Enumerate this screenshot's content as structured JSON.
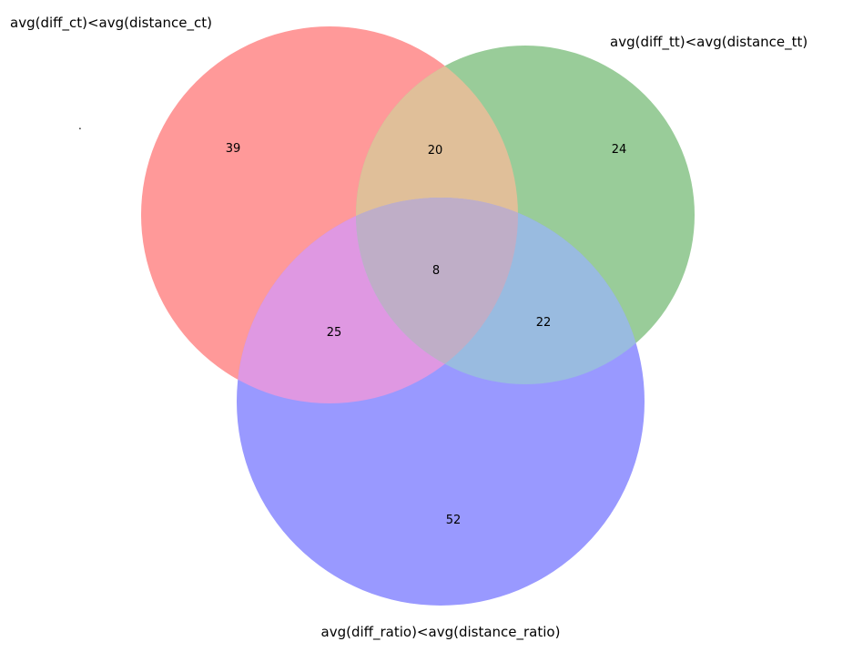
{
  "diagram": {
    "type": "venn3",
    "sets": [
      {
        "id": "A",
        "label": "avg(diff_ct)<avg(distance_ct)",
        "color": "#ff9999"
      },
      {
        "id": "B",
        "label": "avg(diff_tt)<avg(distance_tt)",
        "color": "#99cc99"
      },
      {
        "id": "C",
        "label": "avg(diff_ratio)<avg(distance_ratio)",
        "color": "#9999ff"
      }
    ],
    "regions": {
      "A_only": "39",
      "B_only": "24",
      "C_only": "52",
      "A_B": "20",
      "A_C": "25",
      "B_C": "22",
      "A_B_C": "8"
    },
    "region_colors": {
      "A_B": "#e0bf99",
      "A_C": "#df98e2",
      "B_C": "#99bbe0",
      "A_B_C": "#bfaec7"
    },
    "stray_mark": "."
  }
}
